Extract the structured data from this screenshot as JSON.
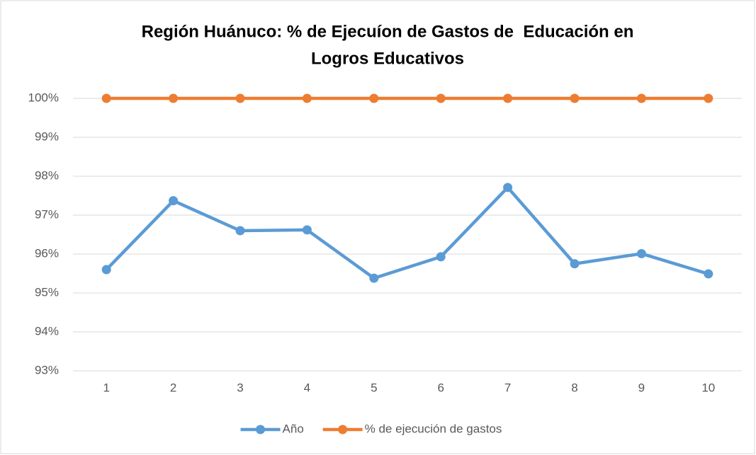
{
  "chart_data": {
    "type": "line",
    "title": [
      "Región Huánuco: % de Ejecuíon de Gastos de  Educación en",
      "Logros Educativos"
    ],
    "categories": [
      "1",
      "2",
      "3",
      "4",
      "5",
      "6",
      "7",
      "8",
      "9",
      "10"
    ],
    "series": [
      {
        "name": "Año",
        "color": "#5b9bd5",
        "values": [
          95.6,
          97.37,
          96.6,
          96.62,
          95.38,
          95.93,
          97.71,
          95.75,
          96.01,
          95.49
        ]
      },
      {
        "name": "% de ejecución de gastos",
        "color": "#ed7d31",
        "values": [
          100,
          100,
          100,
          100,
          100,
          100,
          100,
          100,
          100,
          100
        ]
      }
    ],
    "ylim": [
      93,
      100
    ],
    "yticks": [
      {
        "value": 93,
        "label": "93%"
      },
      {
        "value": 94,
        "label": "94%"
      },
      {
        "value": 95,
        "label": "95%"
      },
      {
        "value": 96,
        "label": "96%"
      },
      {
        "value": 97,
        "label": "97%"
      },
      {
        "value": 98,
        "label": "98%"
      },
      {
        "value": 99,
        "label": "99%"
      },
      {
        "value": 100,
        "label": "100%"
      }
    ],
    "grid": true,
    "legend": "bottom"
  }
}
